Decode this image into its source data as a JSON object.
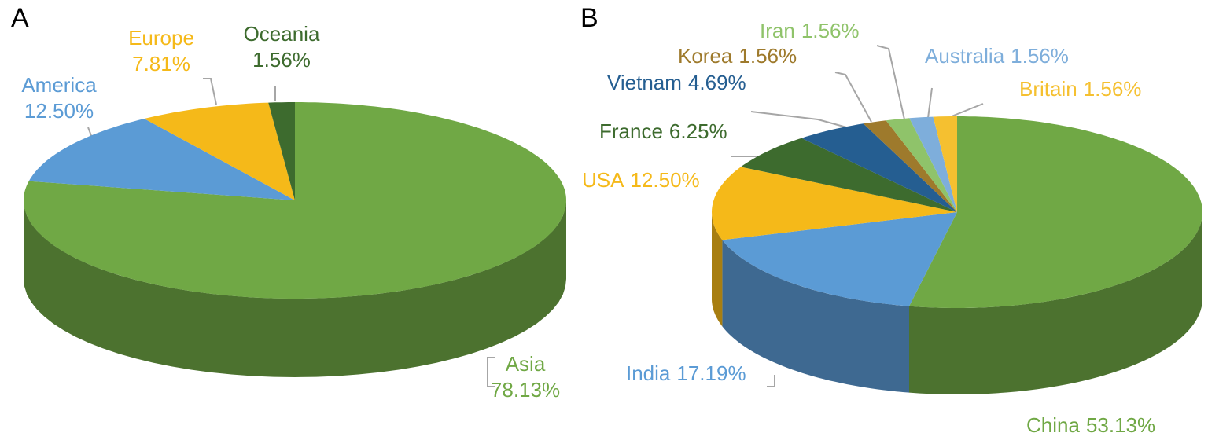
{
  "chart_data": [
    {
      "type": "pie",
      "title": "A",
      "categories": [
        "Asia",
        "America",
        "Europe",
        "Oceania"
      ],
      "values": [
        78.13,
        12.5,
        7.81,
        1.56
      ],
      "value_labels": [
        "78.13%",
        "12.50%",
        "7.81%",
        "1.56%"
      ],
      "colors": [
        "#70a845",
        "#5b9bd5",
        "#f5b919",
        "#3d6b2e"
      ]
    },
    {
      "type": "pie",
      "title": "B",
      "categories": [
        "China",
        "India",
        "USA",
        "France",
        "Vietnam",
        "Korea",
        "Iran",
        "Australia",
        "Britain"
      ],
      "values": [
        53.13,
        17.19,
        12.5,
        6.25,
        4.69,
        1.56,
        1.56,
        1.56,
        1.56
      ],
      "value_labels": [
        "53.13%",
        "17.19%",
        "12.50%",
        "6.25%",
        "4.69%",
        "1.56%",
        "1.56%",
        "1.56%",
        "1.56%"
      ],
      "colors": [
        "#70a845",
        "#5b9bd5",
        "#f5b919",
        "#3d6b2e",
        "#255e91",
        "#9e7a2c",
        "#8fc36a",
        "#7eaedb",
        "#f5c030"
      ]
    }
  ]
}
